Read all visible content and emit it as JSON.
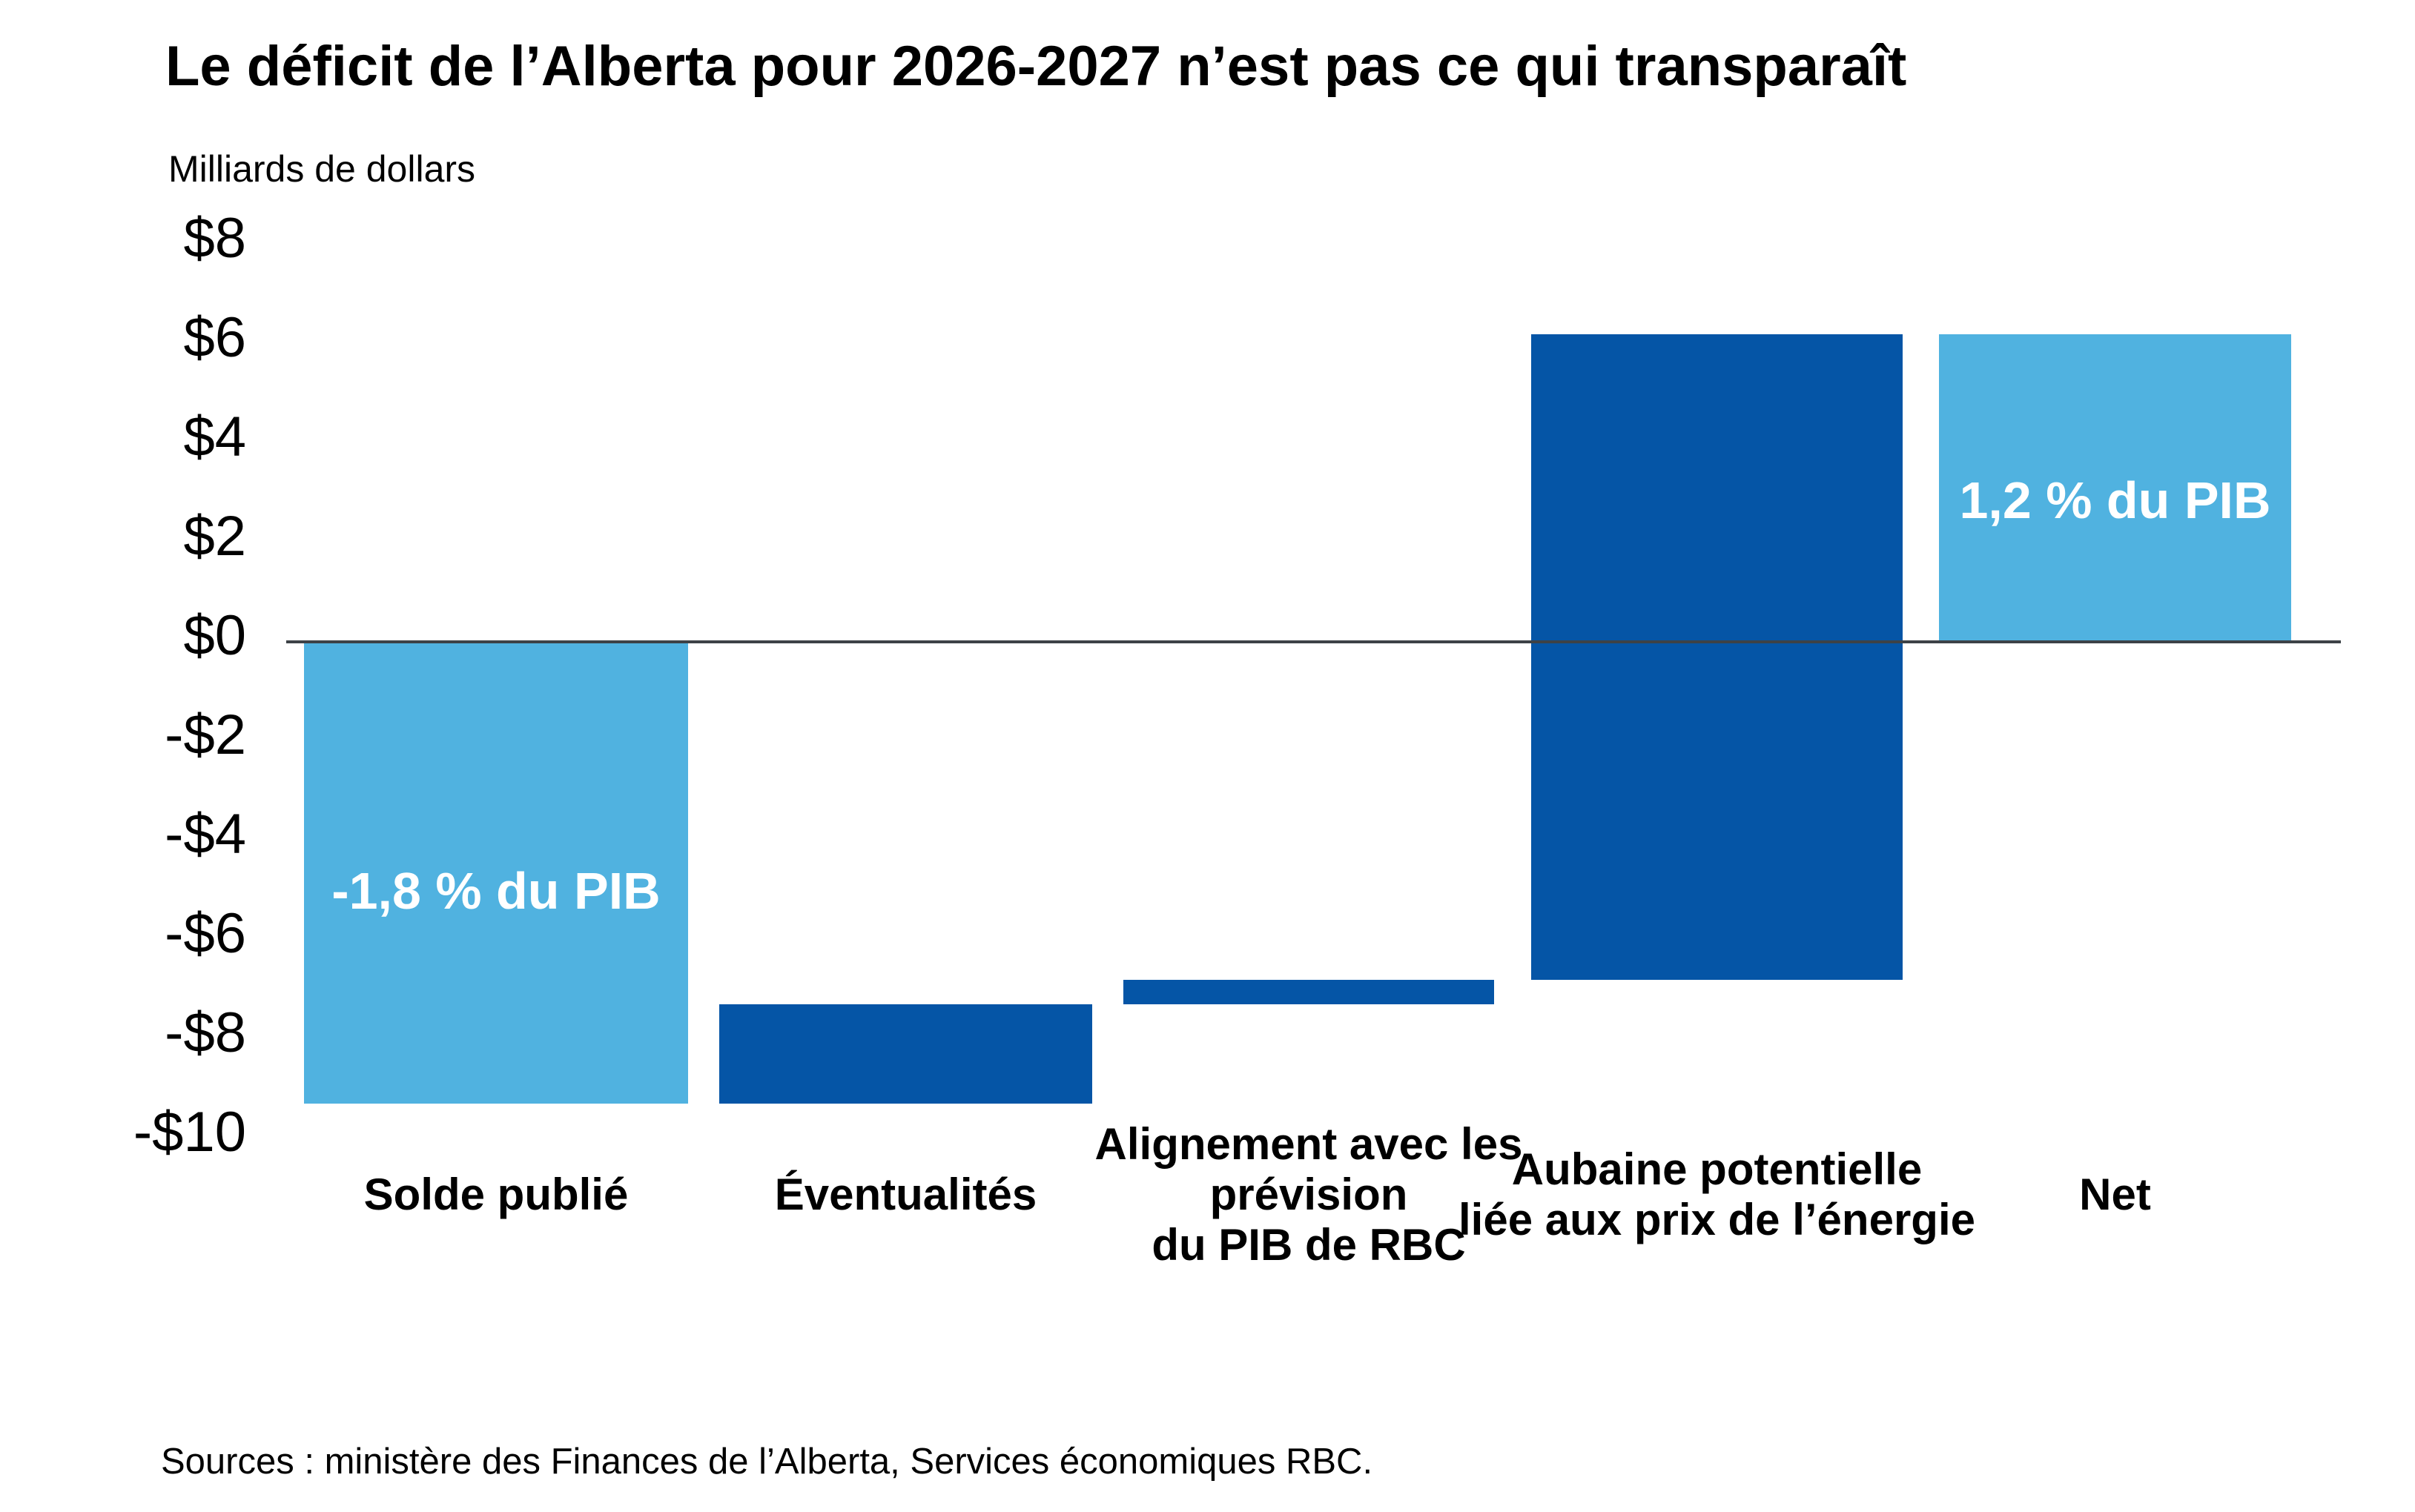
{
  "title": "Le déficit de l’Alberta pour 2026-2027 n’est pas ce qui transparaît",
  "y_axis_title": "Milliards de dollars",
  "source": "Sources : ministère des Finances de l’Alberta, Services économiques RBC.",
  "colors": {
    "light_blue": "#50B2E0",
    "dark_blue": "#0555A6",
    "zero_line": "#3D4247",
    "text": "#000000",
    "background": "#FFFFFF"
  },
  "chart_data": {
    "type": "bar",
    "subtype": "waterfall",
    "title": "Le déficit de l’Alberta pour 2026-2027 n’est pas ce qui transparaît",
    "ylabel": "Milliards de dollars",
    "unit": "milliards de dollars (CAD)",
    "ylim": [
      -10,
      8
    ],
    "grid": "zero-line-only",
    "legend": "none",
    "yticks": [
      {
        "value": 8,
        "label": "$8"
      },
      {
        "value": 6,
        "label": "$6"
      },
      {
        "value": 4,
        "label": "$4"
      },
      {
        "value": 2,
        "label": "$2"
      },
      {
        "value": 0,
        "label": "$0"
      },
      {
        "value": -2,
        "label": "-$2"
      },
      {
        "value": -4,
        "label": "-$4"
      },
      {
        "value": -6,
        "label": "-$6"
      },
      {
        "value": -8,
        "label": "-$8"
      },
      {
        "value": -10,
        "label": "-$10"
      }
    ],
    "bars": [
      {
        "category": "Solde publié",
        "category_lines": [
          "Solde publié"
        ],
        "from": 0,
        "to": -9.3,
        "value": -9.3,
        "color": "light_blue",
        "bar_label": "-1,8 % du PIB"
      },
      {
        "category": "Éventualités",
        "category_lines": [
          "Éventualités"
        ],
        "from": -9.3,
        "to": -7.3,
        "value": 2.0,
        "color": "dark_blue",
        "bar_label": ""
      },
      {
        "category": "Alignement avec les prévision du PIB de RBC",
        "category_lines": [
          "Alignement avec les",
          "prévision",
          "du PIB de RBC"
        ],
        "from": -7.3,
        "to": -6.8,
        "value": 0.5,
        "color": "dark_blue",
        "bar_label": ""
      },
      {
        "category": "Aubaine potentielle liée aux prix de l’énergie",
        "category_lines": [
          "Aubaine potentielle",
          "liée aux prix de l’énergie"
        ],
        "from": -6.8,
        "to": 6.2,
        "value": 13.0,
        "color": "dark_blue",
        "bar_label": ""
      },
      {
        "category": "Net",
        "category_lines": [
          "Net"
        ],
        "from": 0,
        "to": 6.2,
        "value": 6.2,
        "color": "light_blue",
        "bar_label": "1,2 % du PIB"
      }
    ]
  }
}
